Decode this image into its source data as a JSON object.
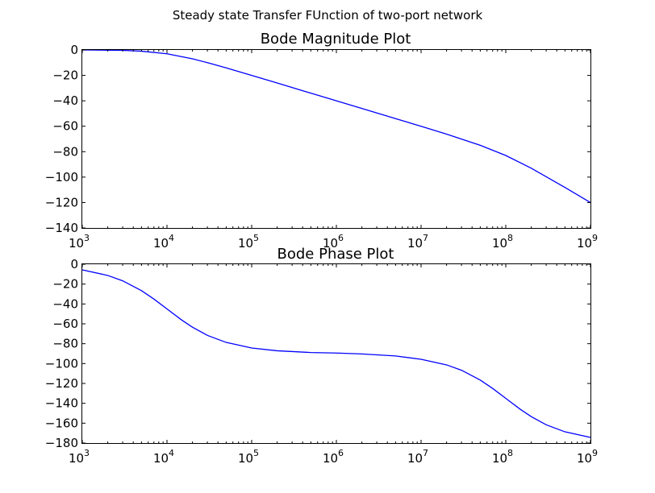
{
  "suptitle": "Steady state Transfer FUnction of two-port network",
  "chart_data": [
    {
      "type": "line",
      "title": "Bode Magnitude Plot",
      "xlabel": "",
      "ylabel": "",
      "x_scale": "log",
      "xlim": [
        1000,
        1000000000
      ],
      "ylim": [
        -140,
        0
      ],
      "x_ticks": [
        {
          "value": 1000,
          "base": "10",
          "exp": "3"
        },
        {
          "value": 10000,
          "base": "10",
          "exp": "4"
        },
        {
          "value": 100000,
          "base": "10",
          "exp": "5"
        },
        {
          "value": 1000000,
          "base": "10",
          "exp": "6"
        },
        {
          "value": 10000000,
          "base": "10",
          "exp": "7"
        },
        {
          "value": 100000000,
          "base": "10",
          "exp": "8"
        },
        {
          "value": 1000000000,
          "base": "10",
          "exp": "9"
        }
      ],
      "y_ticks": [
        {
          "value": 0,
          "label": "0"
        },
        {
          "value": -20,
          "label": "−20"
        },
        {
          "value": -40,
          "label": "−40"
        },
        {
          "value": -60,
          "label": "−60"
        },
        {
          "value": -80,
          "label": "−80"
        },
        {
          "value": -100,
          "label": "−100"
        },
        {
          "value": -120,
          "label": "−120"
        },
        {
          "value": -140,
          "label": "−140"
        }
      ],
      "grid": false,
      "series": [
        {
          "color": "#0000ff",
          "x": [
            1000,
            2000,
            3000,
            5000,
            10000,
            20000,
            30000,
            50000,
            100000,
            200000,
            500000,
            1000000,
            2000000,
            5000000,
            10000000,
            20000000,
            50000000,
            100000000,
            200000000,
            500000000,
            1000000000
          ],
          "y": [
            0,
            -0.2,
            -0.3,
            -1.0,
            -3.0,
            -7.0,
            -10.0,
            -14.1,
            -20.0,
            -26.0,
            -34.0,
            -40.0,
            -46.0,
            -54.0,
            -60.0,
            -66.2,
            -75.0,
            -83.0,
            -93.0,
            -108.1,
            -120.0
          ]
        }
      ]
    },
    {
      "type": "line",
      "title": "Bode Phase Plot",
      "xlabel": "",
      "ylabel": "",
      "x_scale": "log",
      "xlim": [
        1000,
        1000000000
      ],
      "ylim": [
        -180,
        0
      ],
      "x_ticks": [
        {
          "value": 1000,
          "base": "10",
          "exp": "3"
        },
        {
          "value": 10000,
          "base": "10",
          "exp": "4"
        },
        {
          "value": 100000,
          "base": "10",
          "exp": "5"
        },
        {
          "value": 1000000,
          "base": "10",
          "exp": "6"
        },
        {
          "value": 10000000,
          "base": "10",
          "exp": "7"
        },
        {
          "value": 100000000,
          "base": "10",
          "exp": "8"
        },
        {
          "value": 1000000000,
          "base": "10",
          "exp": "9"
        }
      ],
      "y_ticks": [
        {
          "value": 0,
          "label": "0"
        },
        {
          "value": -20,
          "label": "−20"
        },
        {
          "value": -40,
          "label": "−40"
        },
        {
          "value": -60,
          "label": "−60"
        },
        {
          "value": -80,
          "label": "−80"
        },
        {
          "value": -100,
          "label": "−100"
        },
        {
          "value": -120,
          "label": "−120"
        },
        {
          "value": -140,
          "label": "−140"
        },
        {
          "value": -160,
          "label": "−160"
        },
        {
          "value": -180,
          "label": "−180"
        }
      ],
      "grid": false,
      "series": [
        {
          "color": "#0000ff",
          "x": [
            1000,
            2000,
            3000,
            5000,
            7000,
            10000,
            15000,
            20000,
            30000,
            50000,
            100000,
            200000,
            500000,
            1000000,
            2000000,
            5000000,
            10000000,
            20000000,
            30000000,
            50000000,
            70000000,
            100000000,
            150000000,
            200000000,
            300000000,
            500000000,
            1000000000
          ],
          "y": [
            -5.7,
            -11.3,
            -16.7,
            -26.6,
            -35.0,
            -45.0,
            -56.3,
            -63.4,
            -71.6,
            -78.7,
            -84.3,
            -87.1,
            -88.9,
            -89.4,
            -90.3,
            -92.3,
            -95.7,
            -101.3,
            -106.7,
            -116.6,
            -125.0,
            -135.0,
            -146.3,
            -153.4,
            -161.6,
            -168.7,
            -174.3
          ]
        }
      ]
    }
  ]
}
